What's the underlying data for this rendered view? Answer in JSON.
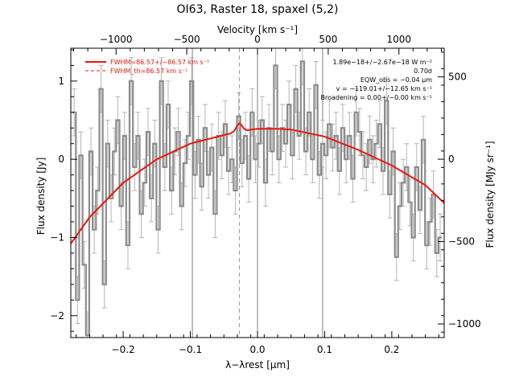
{
  "chart_data": {
    "type": "line",
    "title": "OI63, Raster 18, spaxel (5,2)",
    "xlabel": "λ−λrest [μm]",
    "ylabel": "Flux density [Jy]",
    "x2label": "Velocity [km s⁻¹]",
    "y2label": "Flux density [MJy sr⁻¹]",
    "xlim": [
      -0.278,
      0.278
    ],
    "ylim": [
      -2.28,
      1.42
    ],
    "x2lim": [
      -1320,
      1320
    ],
    "y2lim": [
      -1083,
      674
    ],
    "xticks": [
      "−0.2",
      "−0.1",
      "0.0",
      "0.1",
      "0.2"
    ],
    "xtick_values": [
      -0.2,
      -0.1,
      0.0,
      0.1,
      0.2
    ],
    "yticks": [
      "1",
      "0",
      "−1",
      "−2"
    ],
    "ytick_values": [
      1,
      0,
      -1,
      -2
    ],
    "x2ticks": [
      "−1000",
      "−500",
      "0",
      "500",
      "1000"
    ],
    "x2tick_values": [
      -1000,
      -500,
      0,
      500,
      1000
    ],
    "y2ticks": [
      "500",
      "0",
      "−500",
      "−1000"
    ],
    "y2tick_values": [
      500,
      0,
      -500,
      -1000
    ],
    "vertical_lines": {
      "solid": [
        -0.097,
        0.0,
        0.097
      ],
      "dashed": [
        -0.027
      ]
    },
    "legend": {
      "placement": "top-left",
      "entries": [
        {
          "label": "FWHM=86.57+/−86.57 km s⁻¹",
          "style": "solid",
          "color": "#e8170e"
        },
        {
          "label": "FWHM_th=86.57 km s⁻¹",
          "style": "dashed",
          "color": "#e8170e"
        }
      ]
    },
    "annotations": [
      "1.89e−18+/−2.67e−18 W m⁻²",
      "0.70σ",
      "EQW_obs = −0.04 μm",
      "v = −119.01+/−12.65 km s⁻¹",
      "Broadening = 0.00+/−0.00 km s⁻¹"
    ],
    "series": [
      {
        "style": "step",
        "color": "#8c8c8c",
        "x": [
          -0.273,
          -0.268,
          -0.263,
          -0.258,
          -0.253,
          -0.248,
          -0.243,
          -0.238,
          -0.233,
          -0.228,
          -0.223,
          -0.218,
          -0.213,
          -0.208,
          -0.203,
          -0.198,
          -0.193,
          -0.188,
          -0.183,
          -0.178,
          -0.173,
          -0.168,
          -0.163,
          -0.158,
          -0.153,
          -0.148,
          -0.143,
          -0.138,
          -0.133,
          -0.128,
          -0.123,
          -0.118,
          -0.113,
          -0.108,
          -0.103,
          -0.098,
          -0.093,
          -0.088,
          -0.083,
          -0.078,
          -0.073,
          -0.068,
          -0.063,
          -0.058,
          -0.053,
          -0.048,
          -0.043,
          -0.038,
          -0.033,
          -0.028,
          -0.023,
          -0.018,
          -0.013,
          -0.008,
          -0.003,
          0.002,
          0.007,
          0.012,
          0.017,
          0.022,
          0.027,
          0.032,
          0.037,
          0.042,
          0.047,
          0.052,
          0.057,
          0.062,
          0.067,
          0.072,
          0.077,
          0.082,
          0.087,
          0.092,
          0.097,
          0.102,
          0.107,
          0.112,
          0.117,
          0.122,
          0.127,
          0.132,
          0.137,
          0.142,
          0.147,
          0.152,
          0.157,
          0.162,
          0.167,
          0.172,
          0.177,
          0.182,
          0.187,
          0.192,
          0.197,
          0.202,
          0.207,
          0.212,
          0.217,
          0.222,
          0.227,
          0.232,
          0.237,
          0.242,
          0.247,
          0.252,
          0.257,
          0.262,
          0.267,
          0.272
        ],
        "y": [
          0.6,
          -1.8,
          0.05,
          -1.35,
          -2.25,
          0.1,
          -0.9,
          -0.4,
          0.9,
          -1.6,
          0.2,
          -0.5,
          0.1,
          0.5,
          -0.6,
          0.3,
          -1.1,
          1.0,
          -0.1,
          0.3,
          -0.7,
          -0.3,
          0.35,
          -0.5,
          0.2,
          -0.9,
          1.0,
          -0.1,
          0.7,
          -0.4,
          0.1,
          0.35,
          -0.6,
          -0.05,
          0.3,
          1.0,
          -0.2,
          0.25,
          -0.35,
          0.4,
          -0.2,
          0.15,
          -0.7,
          0.3,
          0.05,
          0.45,
          -0.15,
          0.0,
          -0.4,
          0.55,
          -0.05,
          0.3,
          -0.25,
          0.6,
          0.0,
          0.2,
          0.5,
          -0.3,
          0.4,
          0.1,
          1.2,
          0.0,
          0.4,
          0.2,
          0.7,
          0.05,
          0.9,
          0.3,
          1.25,
          0.1,
          0.6,
          0.0,
          0.95,
          -0.2,
          0.2,
          0.05,
          0.45,
          0.15,
          0.3,
          -0.15,
          0.4,
          0.0,
          0.3,
          -0.25,
          0.6,
          0.35,
          0.05,
          -0.1,
          0.25,
          0.0,
          0.2,
          0.45,
          -0.15,
          0.75,
          -0.45,
          0.1,
          -1.25,
          -0.6,
          -0.3,
          -0.1,
          -0.55,
          -1.0,
          -0.1,
          -0.65,
          0.25,
          -1.1,
          -0.8,
          -0.45,
          -1.2,
          -1.0
        ],
        "yerr": 0.3
      },
      {
        "style": "fit",
        "color": "#e8170e",
        "x": [
          -0.278,
          -0.25,
          -0.2,
          -0.15,
          -0.1,
          -0.05,
          -0.04,
          -0.035,
          -0.03,
          -0.027,
          -0.024,
          -0.02,
          -0.015,
          -0.01,
          0.0,
          0.03,
          0.05,
          0.1,
          0.15,
          0.2,
          0.25,
          0.278
        ],
        "y": [
          -1.08,
          -0.74,
          -0.3,
          0.0,
          0.2,
          0.31,
          0.33,
          0.36,
          0.43,
          0.46,
          0.44,
          0.39,
          0.37,
          0.38,
          0.39,
          0.39,
          0.38,
          0.29,
          0.12,
          -0.08,
          -0.33,
          -0.56
        ]
      }
    ]
  }
}
